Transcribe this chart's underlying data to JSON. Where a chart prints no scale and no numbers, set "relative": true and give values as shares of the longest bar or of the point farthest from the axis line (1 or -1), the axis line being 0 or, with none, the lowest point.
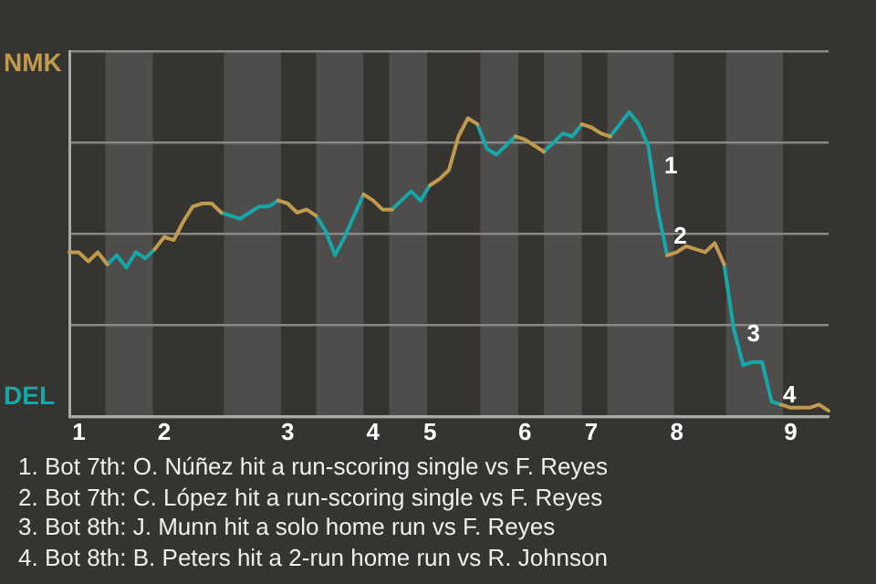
{
  "chart_data": {
    "type": "line",
    "relative": true,
    "categories": [
      null,
      "1",
      null,
      null,
      null,
      null,
      null,
      null,
      null,
      null,
      "2",
      null,
      null,
      null,
      null,
      null,
      null,
      null,
      null,
      null,
      null,
      null,
      null,
      "3",
      null,
      null,
      null,
      null,
      null,
      null,
      null,
      null,
      "4",
      null,
      null,
      null,
      null,
      null,
      "5",
      null,
      null,
      null,
      null,
      null,
      null,
      null,
      null,
      null,
      "6",
      null,
      null,
      null,
      null,
      null,
      null,
      "7",
      null,
      null,
      null,
      null,
      null,
      null,
      null,
      null,
      "8",
      null,
      null,
      null,
      null,
      null,
      null,
      null,
      null,
      null,
      null,
      null,
      "9",
      null,
      null,
      null,
      null
    ],
    "series": [
      {
        "name": "NMK",
        "color": "#c29a4e",
        "values": [
          0.54,
          0.54,
          0.51,
          0.54,
          0.5,
          null,
          null,
          null,
          null,
          0.55,
          0.59,
          0.58,
          0.64,
          0.69,
          0.7,
          0.7,
          0.67,
          null,
          null,
          null,
          null,
          null,
          0.71,
          0.7,
          0.67,
          0.68,
          0.66,
          null,
          null,
          null,
          null,
          0.73,
          0.71,
          0.68,
          0.68,
          null,
          null,
          null,
          0.76,
          0.78,
          0.81,
          0.92,
          0.98,
          0.96,
          null,
          null,
          null,
          0.92,
          0.91,
          0.89,
          0.87,
          null,
          null,
          null,
          0.96,
          0.95,
          0.93,
          0.92,
          null,
          null,
          null,
          null,
          null,
          0.53,
          0.54,
          0.56,
          0.55,
          0.54,
          0.57,
          0.5,
          null,
          null,
          null,
          null,
          null,
          0.04,
          0.03,
          0.03,
          0.03,
          0.04,
          0.02
        ]
      },
      {
        "name": "DEL",
        "color": "#16a8a8",
        "values": [
          null,
          null,
          null,
          null,
          0.5,
          0.53,
          0.49,
          0.54,
          0.52,
          0.55,
          null,
          null,
          null,
          null,
          null,
          null,
          0.67,
          0.66,
          0.65,
          0.67,
          0.69,
          0.69,
          0.71,
          null,
          null,
          null,
          0.66,
          0.61,
          0.53,
          0.59,
          0.66,
          0.73,
          null,
          null,
          0.68,
          0.71,
          0.74,
          0.71,
          0.76,
          null,
          null,
          null,
          null,
          0.96,
          0.88,
          0.86,
          0.89,
          0.92,
          null,
          null,
          0.87,
          0.9,
          0.93,
          0.92,
          0.96,
          null,
          null,
          0.92,
          0.96,
          1,
          0.96,
          0.89,
          0.68,
          0.53,
          null,
          null,
          null,
          null,
          null,
          0.5,
          0.29,
          0.17,
          0.18,
          0.18,
          0.05,
          0.04,
          null,
          null,
          null,
          null,
          null
        ]
      }
    ],
    "grid": "y",
    "annotations": [
      "1",
      "2",
      "3",
      "4",
      "1. Bot 7th: O. Núñez hit a run-scoring single vs F. Reyes",
      "2. Bot 7th: C. López hit a run-scoring single vs F. Reyes",
      "3. Bot 8th: J. Munn hit a solo home run vs F. Reyes",
      "4. Bot 8th: B. Peters hit a 2-run home run vs R. Johnson"
    ]
  }
}
